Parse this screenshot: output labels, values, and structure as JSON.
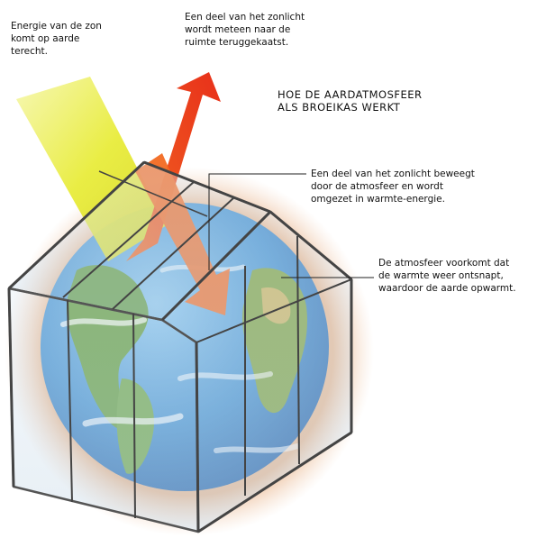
{
  "title": {
    "line1": "HOE DE AARDATMOSFEER",
    "line2": "ALS BROEIKAS WERKT"
  },
  "labels": {
    "sun_energy": [
      "Energie van de zon",
      "komt op aarde",
      "terecht."
    ],
    "reflected": [
      "Een deel van het zonlicht",
      "wordt meteen naar de",
      "ruimte teruggekaatst."
    ],
    "absorbed": [
      "Een deel van het zonlicht beweegt",
      "door de atmosfeer en wordt",
      "omgezet in warmte-energie."
    ],
    "trapped": [
      "De atmosfeer voorkomt dat",
      "de warmte weer ontsnapt,",
      "waardoor de aarde opwarmt."
    ]
  },
  "colors": {
    "sunlight": "#e8ec3a",
    "reflected_arrow": "#f04a1e",
    "incoming_arrow": "#f26a22",
    "ocean": "#3f8fd0",
    "land": "#5e9a3a",
    "atmosphere_glow": "#e9b48a",
    "frame": "#444444"
  }
}
